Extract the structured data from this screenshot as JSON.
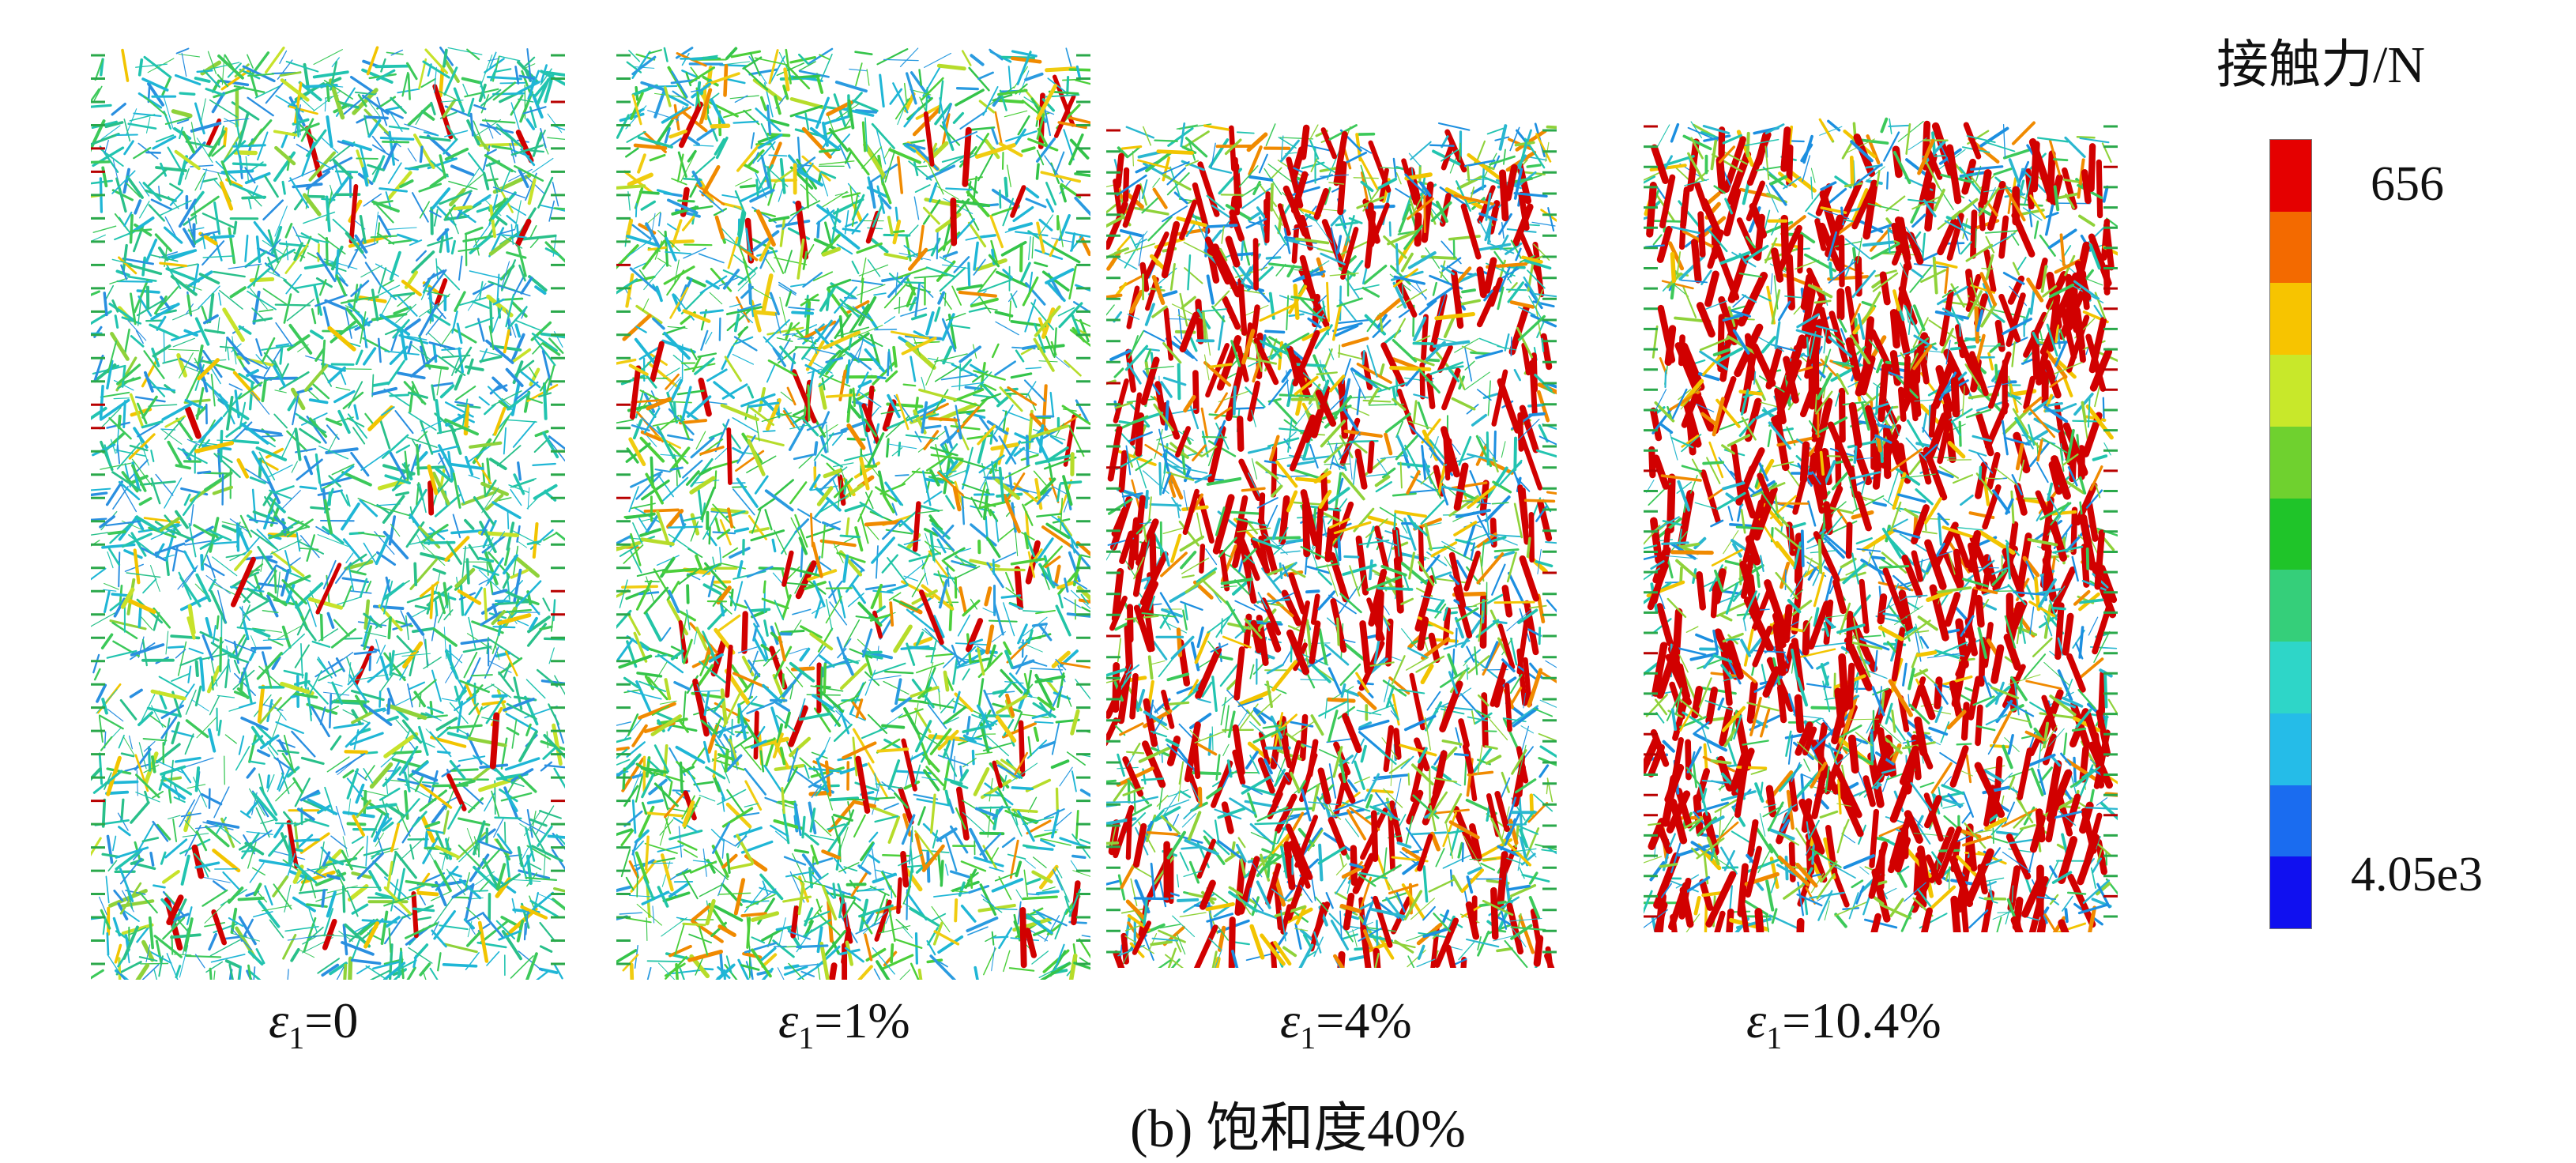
{
  "figure": {
    "caption": "(b) 饱和度40%",
    "panels": [
      {
        "strain_label": "=0",
        "subscript": "1",
        "symbol": "ε",
        "dominant_force": "low"
      },
      {
        "strain_label": "=1%",
        "subscript": "1",
        "symbol": "ε",
        "dominant_force": "low-mid"
      },
      {
        "strain_label": "=4%",
        "subscript": "1",
        "symbol": "ε",
        "dominant_force": "high"
      },
      {
        "strain_label": "=10.4%",
        "subscript": "1",
        "symbol": "ε",
        "dominant_force": "very-high"
      }
    ]
  },
  "legend": {
    "title": "接触力/N",
    "max_label": "656",
    "min_label": "4.05e3",
    "colors": [
      "#e50000",
      "#f36a00",
      "#f7c400",
      "#c8e82a",
      "#6fd12f",
      "#1fc429",
      "#35cf7a",
      "#2ed6c8",
      "#25bce8",
      "#1a6cf0",
      "#1010f0"
    ]
  }
}
